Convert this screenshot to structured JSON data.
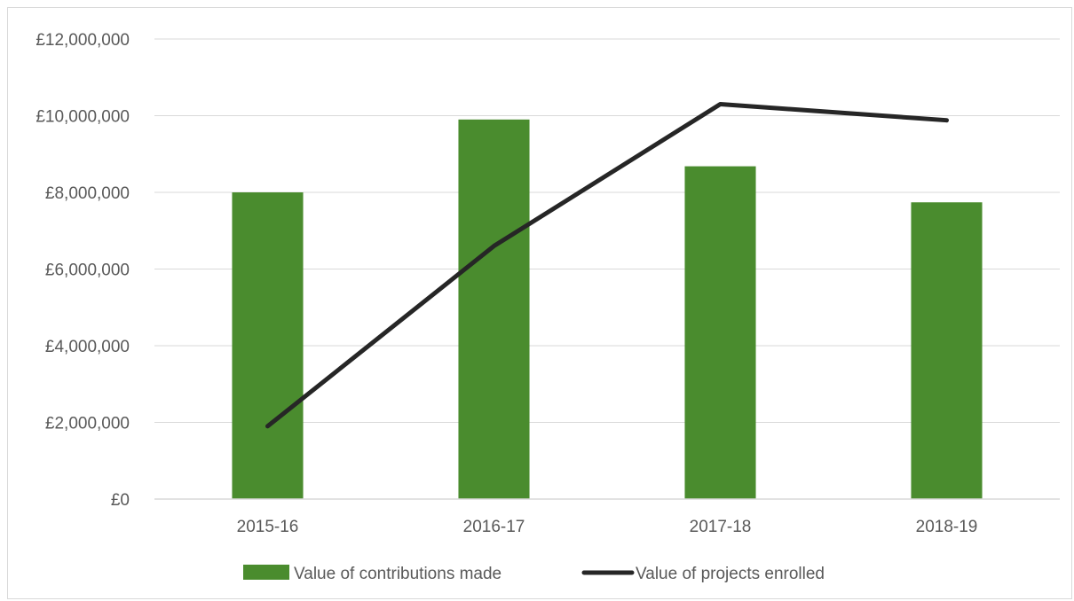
{
  "chart_data": {
    "type": "bar",
    "categories": [
      "2015-16",
      "2016-17",
      "2017-18",
      "2018-19"
    ],
    "series": [
      {
        "name": "Value of contributions made",
        "type": "bar",
        "color": "#4a8c2e",
        "values": [
          8000000,
          9900000,
          8680000,
          7740000
        ]
      },
      {
        "name": "Value of projects enrolled",
        "type": "line",
        "color": "#262626",
        "values": [
          1900000,
          6600000,
          10300000,
          9880000
        ]
      }
    ],
    "title": "",
    "xlabel": "",
    "ylabel": "",
    "ylim": [
      0,
      12000000
    ],
    "yticks": [
      0,
      2000000,
      4000000,
      6000000,
      8000000,
      10000000,
      12000000
    ],
    "ytick_labels": [
      "£0",
      "£2,000,000",
      "£4,000,000",
      "£6,000,000",
      "£8,000,000",
      "£10,000,000",
      "£12,000,000"
    ],
    "grid": true,
    "legend_position": "bottom"
  }
}
